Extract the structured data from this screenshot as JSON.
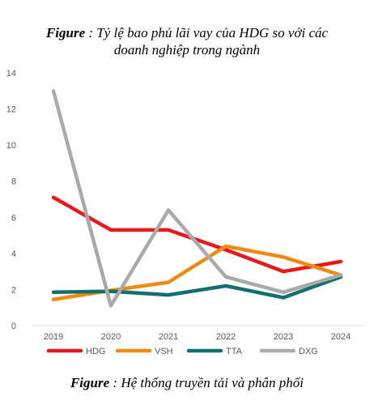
{
  "captions": {
    "top_prefix": "Figure",
    "top_line1": ": Tỷ lệ bao phủ lãi vay của HDG so với các",
    "top_line2": "doanh nghiệp trong ngành",
    "bottom_prefix": "Figure",
    "bottom_text": ": Hệ thống truyền tải và phân phối"
  },
  "chart_data": {
    "type": "line",
    "title": "",
    "xlabel": "",
    "ylabel": "",
    "categories": [
      "2019",
      "2020",
      "2021",
      "2022",
      "2023",
      "2024"
    ],
    "ylim": [
      0,
      14
    ],
    "yticks": [
      0,
      2,
      4,
      6,
      8,
      10,
      12,
      14
    ],
    "grid": false,
    "legend_position": "bottom",
    "series": [
      {
        "name": "HDG",
        "color": "#e8191c",
        "values": [
          7.1,
          5.3,
          5.3,
          4.2,
          3.0,
          3.55
        ]
      },
      {
        "name": "VSH",
        "color": "#ee8a12",
        "values": [
          1.45,
          1.95,
          2.4,
          4.4,
          3.8,
          2.8
        ]
      },
      {
        "name": "TTA",
        "color": "#126f6f",
        "values": [
          1.85,
          1.9,
          1.7,
          2.2,
          1.55,
          2.7
        ]
      },
      {
        "name": "DXG",
        "color": "#aaaaaa",
        "values": [
          13.0,
          1.1,
          6.4,
          2.7,
          1.85,
          2.8
        ]
      }
    ]
  }
}
